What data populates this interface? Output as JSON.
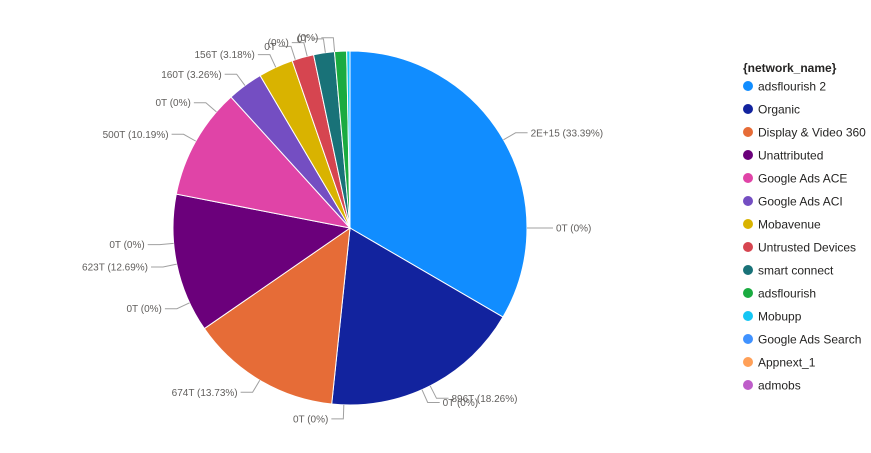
{
  "chart_data": {
    "type": "pie",
    "legend": {
      "title": "{network_name}",
      "placement": "right"
    },
    "series": [
      {
        "name": "adsflourish 2",
        "value": 33.39,
        "label": "2E+15 (33.39%)",
        "color": "#118DFF"
      },
      {
        "name": "Organic",
        "value": 18.26,
        "label": "896T (18.26%)",
        "color": "#12239E"
      },
      {
        "name": "Display & Video 360",
        "value": 13.73,
        "label": "674T (13.73%)",
        "color": "#E66C37"
      },
      {
        "name": "Unattributed",
        "value": 12.69,
        "label": "623T (12.69%)",
        "color": "#6B007B"
      },
      {
        "name": "Google Ads ACE",
        "value": 10.19,
        "label": "500T (10.19%)",
        "color": "#E044A7"
      },
      {
        "name": "Google Ads ACI",
        "value": 3.26,
        "label": "160T (3.26%)",
        "color": "#744EC2"
      },
      {
        "name": "Mobavenue",
        "value": 3.18,
        "label": "156T (3.18%)",
        "color": "#D9B300"
      },
      {
        "name": "Untrusted Devices",
        "value": 2.0,
        "label": "",
        "color": "#D64550"
      },
      {
        "name": "smart connect",
        "value": 1.9,
        "label": "",
        "color": "#197278"
      },
      {
        "name": "adsflourish",
        "value": 1.1,
        "label": "",
        "color": "#1AAB40"
      },
      {
        "name": "Mobupp",
        "value": 0.3,
        "label": "",
        "color": "#15C6F4"
      },
      {
        "name": "Google Ads Search",
        "value": 0.0,
        "label": "",
        "color": "#4092FF"
      },
      {
        "name": "Appnext_1",
        "value": 0.0,
        "label": "",
        "color": "#FFA058"
      },
      {
        "name": "admobs",
        "value": 0.0,
        "label": "",
        "color": "#BE5DC9"
      }
    ],
    "zero_labels": [
      {
        "text": "0T (0%)",
        "anchor_deg": 90
      },
      {
        "text": "0T (0%)",
        "anchor_deg": 156
      },
      {
        "text": "0T (0%)",
        "anchor_deg": 182
      },
      {
        "text": "0T (0%)",
        "anchor_deg": 245
      },
      {
        "text": "0T (0%)",
        "anchor_deg": 265
      },
      {
        "text": "0T (0%)",
        "anchor_deg": 311
      },
      {
        "text": "0T",
        "anchor_deg": 342
      },
      {
        "text": "(0%)",
        "anchor_deg": 346
      },
      {
        "text": "0T",
        "anchor_deg": 352
      },
      {
        "text": "(0%)",
        "anchor_deg": 355
      }
    ]
  }
}
